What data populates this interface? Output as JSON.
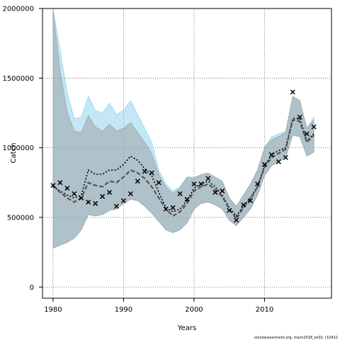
{
  "chart_data": {
    "type": "line",
    "xlabel": "Years",
    "ylabel": "Catch",
    "xlim": [
      1978.5,
      2019.5
    ],
    "ylim": [
      -80000,
      2000000
    ],
    "x_ticks": [
      1980,
      1990,
      2000,
      2010
    ],
    "y_ticks": [
      0,
      500000,
      1000000,
      1500000,
      2000000
    ],
    "grid": true,
    "caption": "stockassessment.org, mack2018_ex02, r10422",
    "colors": {
      "band_a": "#87cfee",
      "band_b": "#9c9c9c",
      "line_a": "#000000",
      "line_b": "#555555",
      "marker": "#000000"
    },
    "years": [
      1980,
      1981,
      1982,
      1983,
      1984,
      1985,
      1986,
      1987,
      1988,
      1989,
      1990,
      1991,
      1992,
      1993,
      1994,
      1995,
      1996,
      1997,
      1998,
      1999,
      2000,
      2001,
      2002,
      2003,
      2004,
      2005,
      2006,
      2007,
      2008,
      2009,
      2010,
      2011,
      2012,
      2013,
      2014,
      2015,
      2016,
      2017
    ],
    "series": [
      {
        "style": "dotted",
        "values": [
          720000,
          690000,
          660000,
          640000,
          660000,
          840000,
          810000,
          810000,
          840000,
          840000,
          880000,
          940000,
          910000,
          850000,
          800000,
          680000,
          570000,
          540000,
          560000,
          620000,
          710000,
          740000,
          760000,
          720000,
          660000,
          570000,
          510000,
          580000,
          640000,
          720000,
          870000,
          950000,
          980000,
          1000000,
          1210000,
          1210000,
          1050000,
          1100000
        ],
        "lower": [
          280000,
          300000,
          320000,
          350000,
          410000,
          520000,
          510000,
          520000,
          550000,
          560000,
          600000,
          630000,
          620000,
          580000,
          530000,
          470000,
          410000,
          390000,
          410000,
          460000,
          560000,
          600000,
          610000,
          590000,
          560000,
          480000,
          440000,
          500000,
          560000,
          660000,
          800000,
          870000,
          900000,
          930000,
          1090000,
          1080000,
          940000,
          970000
        ],
        "upper": [
          2000000,
          1700000,
          1400000,
          1210000,
          1220000,
          1370000,
          1270000,
          1250000,
          1320000,
          1240000,
          1270000,
          1340000,
          1240000,
          1140000,
          1040000,
          840000,
          740000,
          690000,
          720000,
          790000,
          790000,
          800000,
          810000,
          780000,
          760000,
          640000,
          580000,
          660000,
          740000,
          840000,
          1000000,
          1080000,
          1100000,
          1120000,
          1370000,
          1340000,
          1140000,
          1220000
        ]
      },
      {
        "style": "dashed",
        "values": [
          730000,
          680000,
          640000,
          610000,
          640000,
          750000,
          730000,
          720000,
          760000,
          750000,
          790000,
          840000,
          820000,
          780000,
          720000,
          640000,
          560000,
          510000,
          540000,
          600000,
          690000,
          720000,
          740000,
          700000,
          650000,
          560000,
          490000,
          570000,
          630000,
          720000,
          860000,
          930000,
          960000,
          990000,
          1200000,
          1190000,
          1040000,
          1090000
        ],
        "lower": [
          280000,
          300000,
          320000,
          350000,
          410000,
          520000,
          510000,
          520000,
          550000,
          560000,
          600000,
          630000,
          620000,
          580000,
          530000,
          470000,
          410000,
          390000,
          410000,
          460000,
          560000,
          600000,
          610000,
          590000,
          560000,
          480000,
          440000,
          500000,
          560000,
          660000,
          800000,
          870000,
          900000,
          930000,
          1090000,
          1080000,
          940000,
          970000
        ],
        "upper": [
          1990000,
          1550000,
          1260000,
          1120000,
          1110000,
          1230000,
          1150000,
          1120000,
          1170000,
          1120000,
          1140000,
          1180000,
          1110000,
          1040000,
          960000,
          810000,
          720000,
          670000,
          710000,
          790000,
          780000,
          810000,
          820000,
          790000,
          760000,
          640000,
          580000,
          660000,
          740000,
          840000,
          1000000,
          1060000,
          1080000,
          1110000,
          1370000,
          1340000,
          1140000,
          1200000
        ]
      }
    ],
    "observed": {
      "marker": "x",
      "values": [
        730000,
        750000,
        710000,
        670000,
        640000,
        610000,
        600000,
        650000,
        680000,
        580000,
        620000,
        670000,
        760000,
        830000,
        820000,
        750000,
        560000,
        570000,
        670000,
        630000,
        740000,
        740000,
        780000,
        680000,
        690000,
        550000,
        480000,
        590000,
        620000,
        740000,
        880000,
        950000,
        900000,
        930000,
        1400000,
        1220000,
        1100000,
        1150000
      ]
    }
  }
}
